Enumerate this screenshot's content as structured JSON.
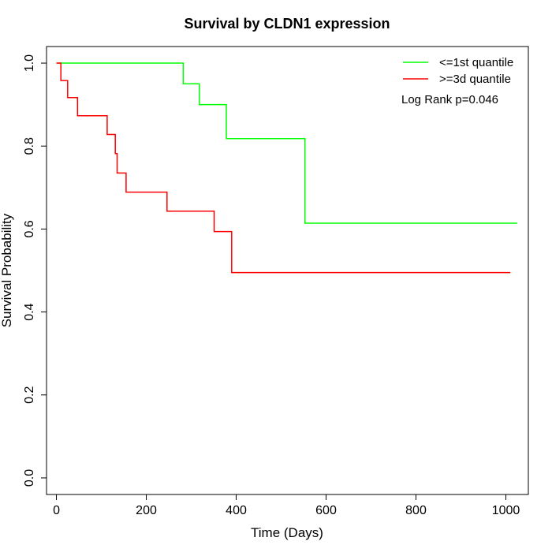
{
  "chart_data": {
    "type": "line",
    "title": "Survival by CLDN1 expression",
    "xlabel": "Time (Days)",
    "ylabel": "Survival Probability",
    "xlim": [
      -22,
      1050
    ],
    "ylim": [
      -0.04,
      1.04
    ],
    "xticks": [
      0,
      200,
      400,
      600,
      800,
      1000
    ],
    "yticks": [
      0.0,
      0.2,
      0.4,
      0.6,
      0.8,
      1.0
    ],
    "xtick_labels": [
      "0",
      "200",
      "400",
      "600",
      "800",
      "1000"
    ],
    "ytick_labels": [
      "0.0",
      "0.2",
      "0.4",
      "0.6",
      "0.8",
      "1.0"
    ],
    "legend_position": "top-right",
    "annotation": "Log Rank p=0.046",
    "grid": false,
    "series": [
      {
        "name": "<=1st quantile",
        "color": "#00ff00",
        "step_points": [
          [
            0,
            1.0
          ],
          [
            282,
            1.0
          ],
          [
            282,
            0.95
          ],
          [
            318,
            0.95
          ],
          [
            318,
            0.9
          ],
          [
            378,
            0.9
          ],
          [
            378,
            0.818
          ],
          [
            553,
            0.818
          ],
          [
            553,
            0.614
          ],
          [
            1025,
            0.614
          ]
        ]
      },
      {
        "name": ">=3d quantile",
        "color": "#ff0000",
        "step_points": [
          [
            0,
            1.0
          ],
          [
            10,
            1.0
          ],
          [
            10,
            0.958
          ],
          [
            25,
            0.958
          ],
          [
            25,
            0.917
          ],
          [
            47,
            0.917
          ],
          [
            47,
            0.873
          ],
          [
            113,
            0.873
          ],
          [
            113,
            0.828
          ],
          [
            131,
            0.828
          ],
          [
            131,
            0.782
          ],
          [
            135,
            0.782
          ],
          [
            135,
            0.735
          ],
          [
            155,
            0.735
          ],
          [
            155,
            0.689
          ],
          [
            246,
            0.689
          ],
          [
            246,
            0.643
          ],
          [
            351,
            0.643
          ],
          [
            351,
            0.594
          ],
          [
            390,
            0.594
          ],
          [
            390,
            0.495
          ],
          [
            1010,
            0.495
          ]
        ]
      }
    ]
  }
}
